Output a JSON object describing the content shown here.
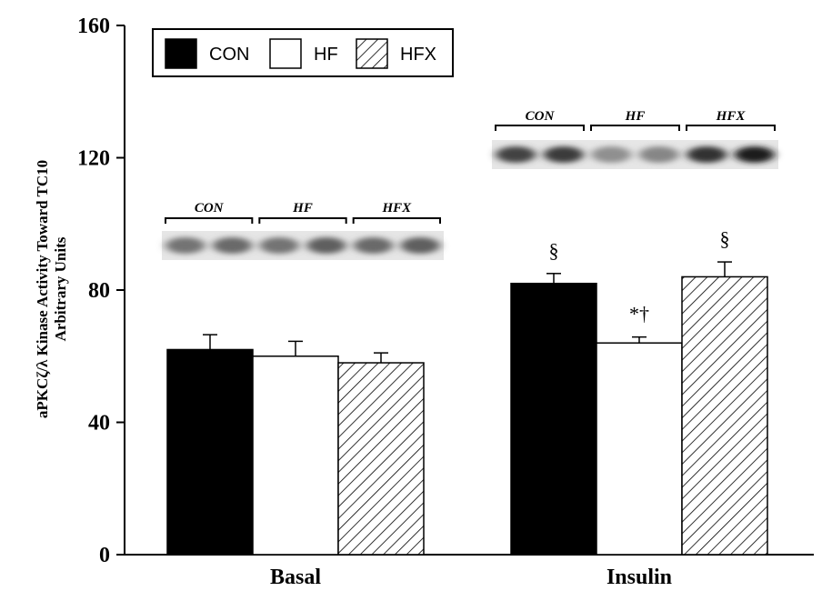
{
  "chart_data": {
    "type": "bar",
    "title": "",
    "xlabel": "",
    "ylabel_lines": [
      "aPKCζ/λ Kinase Activity Toward TC10",
      "Arbitrary Units"
    ],
    "ylim": [
      0,
      160
    ],
    "yticks": [
      "0",
      "40",
      "80",
      "120",
      "160"
    ],
    "categories": [
      "Basal",
      "Insulin"
    ],
    "series": [
      {
        "name": "CON",
        "color": "#000000",
        "pattern": "solid",
        "values": [
          62,
          82
        ],
        "errors": [
          4.5,
          3
        ],
        "annotations": [
          "",
          "§"
        ]
      },
      {
        "name": "HF",
        "color": "#ffffff",
        "pattern": "none",
        "values": [
          60,
          64
        ],
        "errors": [
          4.5,
          1.8
        ],
        "annotations": [
          "",
          "*†"
        ]
      },
      {
        "name": "HFX",
        "color": "#ffffff",
        "pattern": "diagonal-hatch",
        "values": [
          58,
          84
        ],
        "errors": [
          3,
          4.5
        ],
        "annotations": [
          "",
          "§"
        ]
      }
    ],
    "legend": {
      "placement": "top-left",
      "entries": [
        "CON",
        "HF",
        "HFX"
      ]
    },
    "blot_insets": [
      {
        "group": "Basal",
        "labels": [
          "CON",
          "HF",
          "HFX"
        ],
        "band_intensity": [
          0.45,
          0.5,
          0.45,
          0.55,
          0.5,
          0.55
        ]
      },
      {
        "group": "Insulin",
        "labels": [
          "CON",
          "HF",
          "HFX"
        ],
        "band_intensity": [
          0.7,
          0.75,
          0.3,
          0.35,
          0.8,
          0.9
        ]
      }
    ],
    "grid": false
  }
}
